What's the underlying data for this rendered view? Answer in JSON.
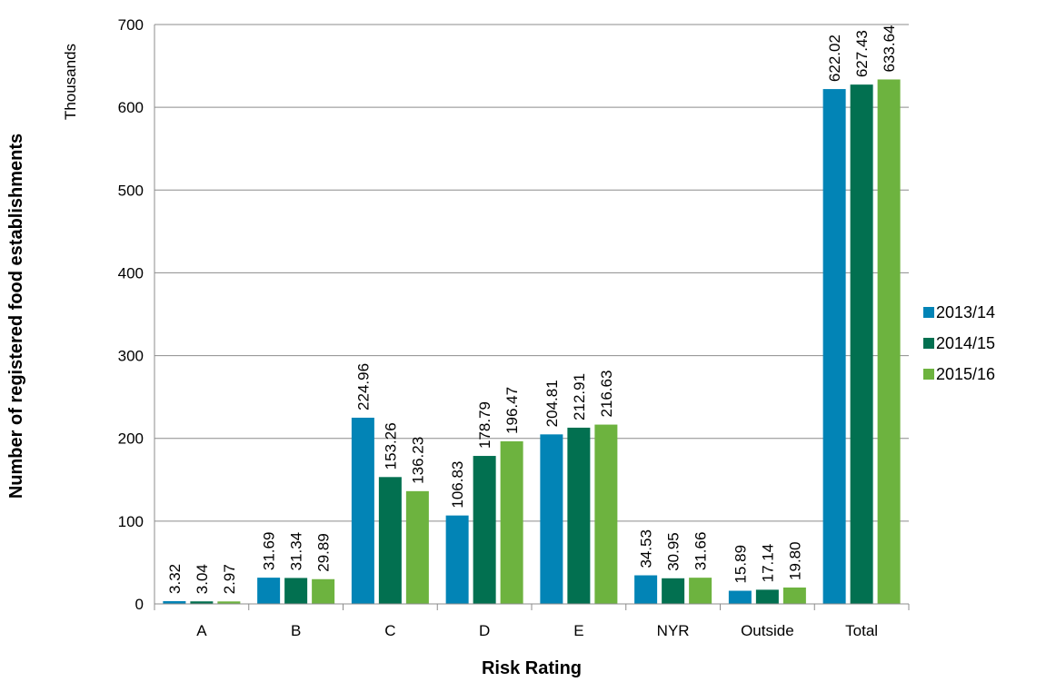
{
  "chart_data": {
    "type": "bar",
    "title": "",
    "xlabel": "Risk Rating",
    "ylabel": "Number of registered food establishments",
    "y_units": "Thousands",
    "ylim": [
      0,
      700
    ],
    "yticks": [
      0,
      100,
      200,
      300,
      400,
      500,
      600,
      700
    ],
    "grid": true,
    "legend_position": "right",
    "categories": [
      "A",
      "B",
      "C",
      "D",
      "E",
      "NYR",
      "Outside",
      "Total"
    ],
    "series": [
      {
        "name": "2013/14",
        "color": "#0284B6",
        "values": [
          3.32,
          31.69,
          224.96,
          106.83,
          204.81,
          34.53,
          15.89,
          622.02
        ],
        "labels": [
          "3.32",
          "31.69",
          "224.96",
          "106.83",
          "204.81",
          "34.53",
          "15.89",
          "622.02"
        ]
      },
      {
        "name": "2014/15",
        "color": "#027050",
        "values": [
          3.04,
          31.34,
          153.26,
          178.79,
          212.91,
          30.95,
          17.14,
          627.43
        ],
        "labels": [
          "3.04",
          "31.34",
          "153.26",
          "178.79",
          "212.91",
          "30.95",
          "17.14",
          "627.43"
        ]
      },
      {
        "name": "2015/16",
        "color": "#6DB33F",
        "values": [
          2.97,
          29.89,
          136.23,
          196.47,
          216.63,
          31.66,
          19.8,
          633.64
        ],
        "labels": [
          "2.97",
          "29.89",
          "136.23",
          "196.47",
          "216.63",
          "31.66",
          "19.80",
          "633.64"
        ]
      }
    ]
  }
}
